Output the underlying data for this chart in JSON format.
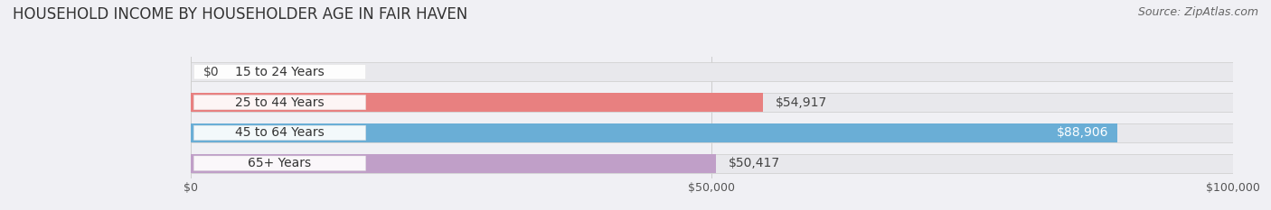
{
  "title": "HOUSEHOLD INCOME BY HOUSEHOLDER AGE IN FAIR HAVEN",
  "source": "Source: ZipAtlas.com",
  "categories": [
    "15 to 24 Years",
    "25 to 44 Years",
    "45 to 64 Years",
    "65+ Years"
  ],
  "values": [
    0,
    54917,
    88906,
    50417
  ],
  "labels": [
    "$0",
    "$54,917",
    "$88,906",
    "$50,417"
  ],
  "label_inside": [
    false,
    false,
    true,
    false
  ],
  "bar_colors": [
    "#f2bf96",
    "#e88080",
    "#6aaed6",
    "#c09fc8"
  ],
  "bg_bar_color": "#e8e8ec",
  "xlim": [
    0,
    100000
  ],
  "xticklabels": [
    "$0",
    "$50,000",
    "$100,000"
  ],
  "xtick_vals": [
    0,
    50000,
    100000
  ],
  "background_color": "#f0f0f4",
  "grid_color": "#cccccc",
  "title_fontsize": 12,
  "source_fontsize": 9,
  "label_fontsize": 10,
  "tick_fontsize": 9,
  "category_fontsize": 10,
  "bar_height": 0.62,
  "bar_gap": 0.38
}
